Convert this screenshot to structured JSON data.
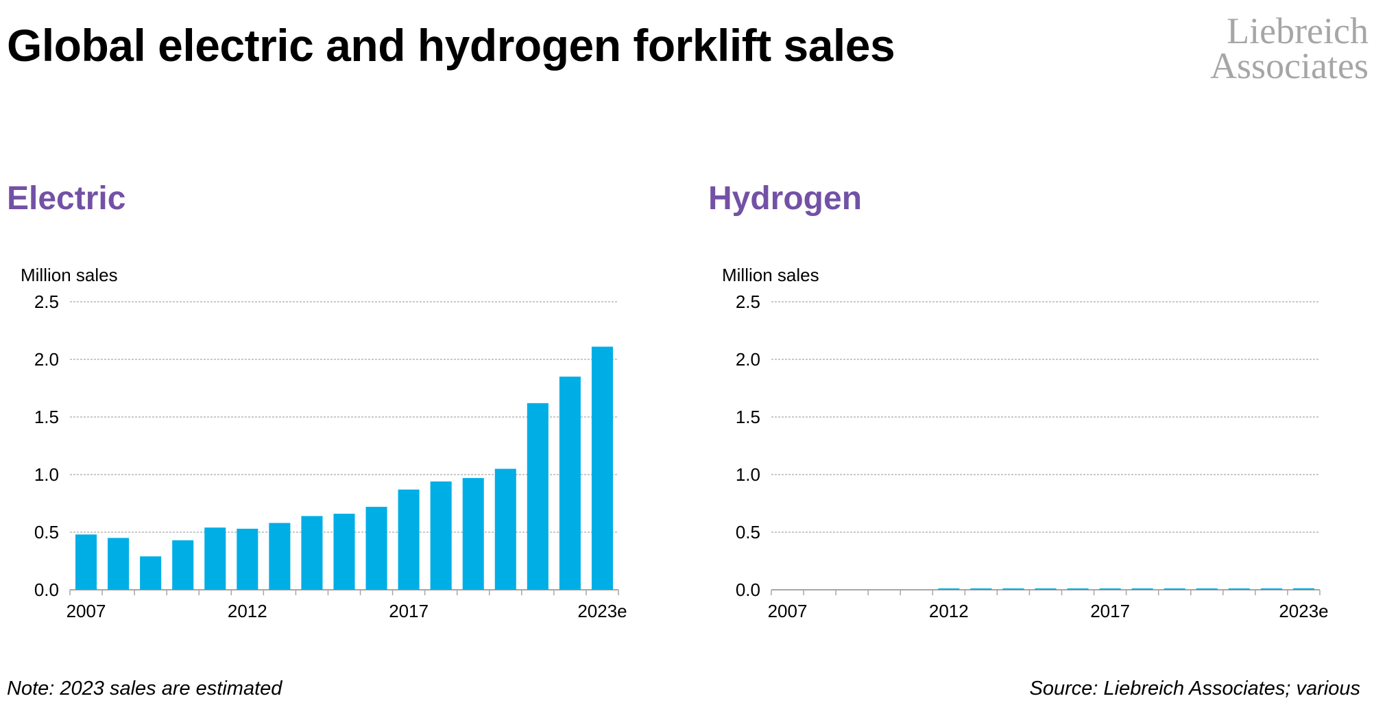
{
  "title": "Global electric and hydrogen forklift sales",
  "logo": {
    "line1": "Liebreich",
    "line2": "Associates"
  },
  "note": "Note: 2023 sales are estimated",
  "source": "Source: Liebreich Associates; various",
  "colors": {
    "bar": "#00aee6",
    "panel_title": "#7351a5",
    "grid": "#a6a6a6"
  },
  "chart_data": [
    {
      "type": "bar",
      "title": "Electric",
      "ylabel": "Million sales",
      "ylim": [
        0,
        2.5
      ],
      "yticks": [
        "0.0",
        "0.5",
        "1.0",
        "1.5",
        "2.0",
        "2.5"
      ],
      "categories": [
        "2007",
        "2008",
        "2009",
        "2010",
        "2011",
        "2012",
        "2013",
        "2014",
        "2015",
        "2016",
        "2017",
        "2018",
        "2019",
        "2020",
        "2021",
        "2022",
        "2023e"
      ],
      "tick_labels": [
        "2007",
        "2012",
        "2017",
        "2023e"
      ],
      "values": [
        0.48,
        0.45,
        0.29,
        0.43,
        0.54,
        0.53,
        0.58,
        0.64,
        0.66,
        0.72,
        0.87,
        0.94,
        0.97,
        1.05,
        1.62,
        1.85,
        2.11
      ],
      "grid": true
    },
    {
      "type": "bar",
      "title": "Hydrogen",
      "ylabel": "Million sales",
      "ylim": [
        0,
        2.5
      ],
      "yticks": [
        "0.0",
        "0.5",
        "1.0",
        "1.5",
        "2.0",
        "2.5"
      ],
      "categories": [
        "2007",
        "2008",
        "2009",
        "2010",
        "2011",
        "2012",
        "2013",
        "2014",
        "2015",
        "2016",
        "2017",
        "2018",
        "2019",
        "2020",
        "2021",
        "2022",
        "2023e"
      ],
      "tick_labels": [
        "2007",
        "2012",
        "2017",
        "2023e"
      ],
      "values": [
        0,
        0,
        0,
        0,
        0,
        0.002,
        0.002,
        0.002,
        0.002,
        0.003,
        0.004,
        0.004,
        0.005,
        0.006,
        0.01,
        0.012,
        0.013
      ],
      "grid": true
    }
  ]
}
